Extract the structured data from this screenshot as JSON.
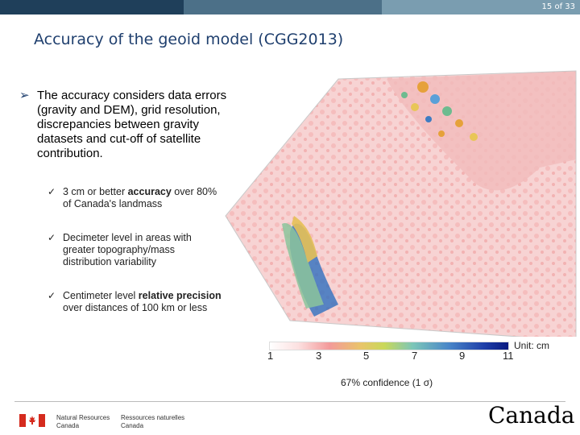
{
  "header": {
    "page_number": "15 of 33",
    "bar_colors": [
      "#1f3f5a",
      "#4c7088",
      "#7a9db0"
    ]
  },
  "slide": {
    "title": "Accuracy of the geoid model (CGG2013)",
    "main_bullet": "The accuracy considers data errors (gravity and DEM), grid resolution, discrepancies between gravity datasets and cut-off of satellite contribution.",
    "sub_bullets": [
      {
        "pre": "3 cm or better ",
        "bold": "accuracy",
        "post": " over 80% of Canada's landmass"
      },
      {
        "pre": "Decimeter level in areas with greater topography/mass distribution variability",
        "bold": "",
        "post": ""
      },
      {
        "pre": "Centimeter level ",
        "bold": "relative precision",
        "post": " over distances of 100 km or less"
      }
    ]
  },
  "legend": {
    "ticks": [
      "1",
      "3",
      "5",
      "7",
      "9",
      "11"
    ],
    "unit": "Unit: cm",
    "confidence": "67% confidence (1 σ)"
  },
  "footer": {
    "dept_en_line1": "Natural Resources",
    "dept_en_line2": "Canada",
    "dept_fr_line1": "Ressources naturelles",
    "dept_fr_line2": "Canada",
    "wordmark": "Canada"
  },
  "colors": {
    "title": "#1f3f6e",
    "flag_red": "#d52b1e"
  }
}
